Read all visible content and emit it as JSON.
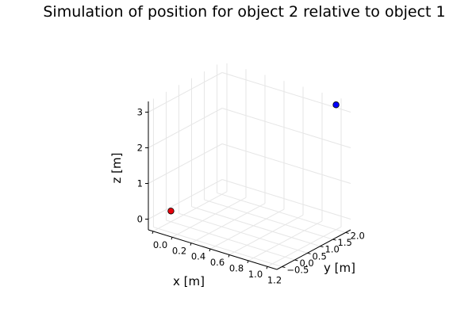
{
  "chart_data": {
    "type": "scatter",
    "title": "Simulation of position for object 2 relative to object 1",
    "xlabel": "x [m]",
    "ylabel": "y [m]",
    "zlabel": "z [m]",
    "x_ticks": [
      "0.0",
      "0.2",
      "0.4",
      "0.6",
      "0.8",
      "1.0",
      "1.2"
    ],
    "y_ticks": [
      "−0.5",
      "0.0",
      "0.5",
      "1.0",
      "1.5",
      "2.0"
    ],
    "z_ticks": [
      "0",
      "1",
      "2",
      "3"
    ],
    "xlim": [
      -0.05,
      1.3
    ],
    "ylim": [
      -0.7,
      2.2
    ],
    "zlim": [
      -0.3,
      3.3
    ],
    "grid": true,
    "legend": "none",
    "points": [
      {
        "x": 0.0,
        "y": 0.0,
        "z": 0.0,
        "color": "#e8000b"
      },
      {
        "x": 1.2,
        "y": 2.0,
        "z": 3.2,
        "color": "#0000ff"
      }
    ]
  }
}
